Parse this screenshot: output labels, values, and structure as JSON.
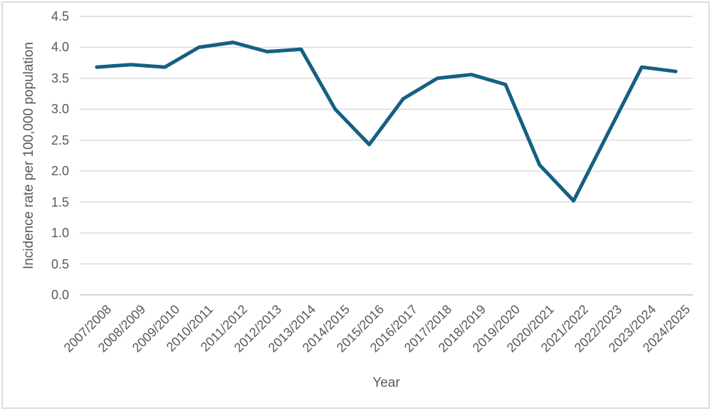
{
  "chart_data": {
    "type": "line",
    "title": "",
    "xlabel": "Year",
    "ylabel": "Incidence rate per 100,000 population",
    "categories": [
      "2007/2008",
      "2008/2009",
      "2009/2010",
      "2010/2011",
      "2011/2012",
      "2012/2013",
      "2013/2014",
      "2014/2015",
      "2015/2016",
      "2016/2017",
      "2017/2018",
      "2018/2019",
      "2019/2020",
      "2020/2021",
      "2021/2022",
      "2022/2023",
      "2023/2024",
      "2024/2025"
    ],
    "values": [
      3.68,
      3.72,
      3.68,
      4.0,
      4.08,
      3.93,
      3.97,
      3.0,
      2.43,
      3.17,
      3.5,
      3.56,
      3.4,
      2.1,
      1.52,
      2.6,
      3.68,
      3.61
    ],
    "ylim": [
      0,
      4.5
    ],
    "ytick_step": 0.5,
    "ytick_labels": [
      "0.0",
      "0.5",
      "1.0",
      "1.5",
      "2.0",
      "2.5",
      "3.0",
      "3.5",
      "4.0",
      "4.5"
    ],
    "grid": true,
    "legend": "none",
    "colors": {
      "line": "#156082",
      "axis_text": "#595959",
      "gridline": "#d9d9d9",
      "axis_line": "#c6c6c6",
      "border": "#dcdcdc",
      "background": "#ffffff"
    }
  }
}
